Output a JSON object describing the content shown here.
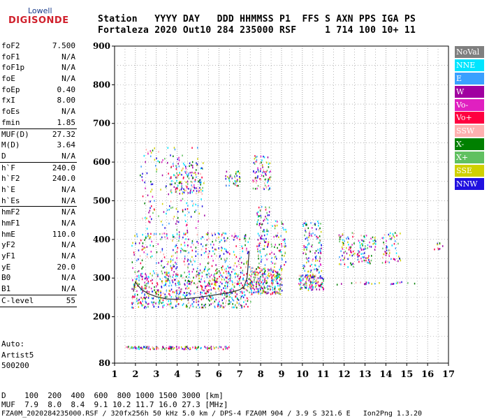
{
  "logo": {
    "top": "Lowell",
    "bottom": "DIGISONDE"
  },
  "header": {
    "line1": "Station   YYYY DAY   DDD HHMMSS P1  FFS S AXN PPS IGA PS",
    "line2": "Fortaleza 2020 Out10 284 235000 RSF     1 714 100 10+ 11"
  },
  "params": [
    {
      "label": "foF2",
      "value": "7.500"
    },
    {
      "label": "foF1",
      "value": "N/A"
    },
    {
      "label": "foF1p",
      "value": "N/A"
    },
    {
      "label": "foE",
      "value": "N/A"
    },
    {
      "label": "foEp",
      "value": "0.40"
    },
    {
      "label": "fxI",
      "value": "8.00"
    },
    {
      "label": "foEs",
      "value": "N/A"
    },
    {
      "label": "fmin",
      "value": "1.85"
    },
    {
      "label": "MUF(D)",
      "value": "27.32"
    },
    {
      "label": "M(D)",
      "value": "3.64"
    },
    {
      "label": "D",
      "value": "N/A"
    },
    {
      "label": "h`F",
      "value": "240.0"
    },
    {
      "label": "h`F2",
      "value": "240.0"
    },
    {
      "label": "h`E",
      "value": "N/A"
    },
    {
      "label": "h`Es",
      "value": "N/A"
    },
    {
      "label": "hmF2",
      "value": "N/A"
    },
    {
      "label": "hmF1",
      "value": "N/A"
    },
    {
      "label": "hmE",
      "value": "110.0"
    },
    {
      "label": "yF2",
      "value": "N/A"
    },
    {
      "label": "yF1",
      "value": "N/A"
    },
    {
      "label": "yE",
      "value": "20.0"
    },
    {
      "label": "B0",
      "value": "N/A"
    },
    {
      "label": "B1",
      "value": "N/A"
    },
    {
      "label": "C-level",
      "value": "55"
    }
  ],
  "auto_block": [
    "Auto:",
    "Artist5",
    "500200"
  ],
  "legend": [
    {
      "label": "NoVal",
      "color": "#7f7f7f"
    },
    {
      "label": "NNE",
      "color": "#00e5ff"
    },
    {
      "label": "E",
      "color": "#3aa0ff"
    },
    {
      "label": "W",
      "color": "#a000a0"
    },
    {
      "label": "Vo-",
      "color": "#e020c0"
    },
    {
      "label": "Vo+",
      "color": "#ff0040"
    },
    {
      "label": "SSW",
      "color": "#ffb0b0"
    },
    {
      "label": "X-",
      "color": "#008000"
    },
    {
      "label": "X+",
      "color": "#60c060"
    },
    {
      "label": "SSE",
      "color": "#d0d000"
    },
    {
      "label": "NNW",
      "color": "#2010e0"
    }
  ],
  "dist_table": {
    "d_row": "D    100  200  400  600  800 1000 1500 3000 [km]",
    "muf_row": "MUF  7.9  8.0  8.4  9.1 10.2 11.7 16.0 27.3 [MHz]"
  },
  "footer": "FZA0M_2020284235000.RSF / 320fx256h 50 kHz 5.0 km / DPS-4 FZA0M 904 / 3.9 S 321.6 E   Ion2Png 1.3.20",
  "chart_data": {
    "type": "scatter",
    "xlim": [
      1,
      17
    ],
    "ylim": [
      80,
      900
    ],
    "xticks": [
      1,
      2,
      3,
      4,
      5,
      6,
      7,
      8,
      9,
      10,
      11,
      12,
      13,
      14,
      15,
      16,
      17
    ],
    "yticks": [
      80,
      200,
      300,
      400,
      500,
      600,
      700,
      800,
      900
    ],
    "grid": true,
    "legend_placement": "right",
    "trace_curve": {
      "color": "#303030",
      "points": [
        [
          1.9,
          265
        ],
        [
          2.0,
          290
        ],
        [
          2.1,
          282
        ],
        [
          2.3,
          270
        ],
        [
          2.6,
          260
        ],
        [
          3.0,
          252
        ],
        [
          3.5,
          246
        ],
        [
          4.0,
          245
        ],
        [
          4.5,
          247
        ],
        [
          5.0,
          250
        ],
        [
          5.5,
          254
        ],
        [
          6.0,
          258
        ],
        [
          6.5,
          262
        ],
        [
          7.0,
          270
        ],
        [
          7.2,
          278
        ],
        [
          7.35,
          300
        ],
        [
          7.45,
          370
        ]
      ]
    },
    "echo_regions": [
      {
        "x": [
          1.8,
          7.5
        ],
        "y": [
          225,
          320
        ],
        "density": 700
      },
      {
        "x": [
          1.8,
          7.5
        ],
        "y": [
          320,
          420
        ],
        "density": 320
      },
      {
        "x": [
          2.2,
          5.3
        ],
        "y": [
          420,
          640
        ],
        "density": 160
      },
      {
        "x": [
          3.6,
          5.2
        ],
        "y": [
          520,
          600
        ],
        "density": 120
      },
      {
        "x": [
          6.3,
          7.0
        ],
        "y": [
          540,
          580
        ],
        "density": 40
      },
      {
        "x": [
          7.5,
          9.0
        ],
        "y": [
          260,
          330
        ],
        "density": 260
      },
      {
        "x": [
          7.6,
          8.5
        ],
        "y": [
          530,
          620
        ],
        "density": 80
      },
      {
        "x": [
          7.8,
          8.4
        ],
        "y": [
          440,
          490
        ],
        "density": 30
      },
      {
        "x": [
          7.8,
          9.2
        ],
        "y": [
          330,
          450
        ],
        "density": 120
      },
      {
        "x": [
          9.8,
          11.0
        ],
        "y": [
          270,
          310
        ],
        "density": 120
      },
      {
        "x": [
          10.0,
          10.9
        ],
        "y": [
          300,
          450
        ],
        "density": 140
      },
      {
        "x": [
          11.7,
          12.5
        ],
        "y": [
          330,
          420
        ],
        "density": 60
      },
      {
        "x": [
          12.6,
          13.5
        ],
        "y": [
          340,
          420
        ],
        "density": 70
      },
      {
        "x": [
          13.8,
          14.7
        ],
        "y": [
          340,
          420
        ],
        "density": 60
      },
      {
        "x": [
          16.3,
          16.7
        ],
        "y": [
          375,
          395
        ],
        "density": 10
      },
      {
        "x": [
          11.5,
          15.5
        ],
        "y": [
          285,
          292
        ],
        "density": 25
      },
      {
        "x": [
          1.5,
          6.5
        ],
        "y": [
          118,
          125
        ],
        "density": 140
      }
    ]
  }
}
